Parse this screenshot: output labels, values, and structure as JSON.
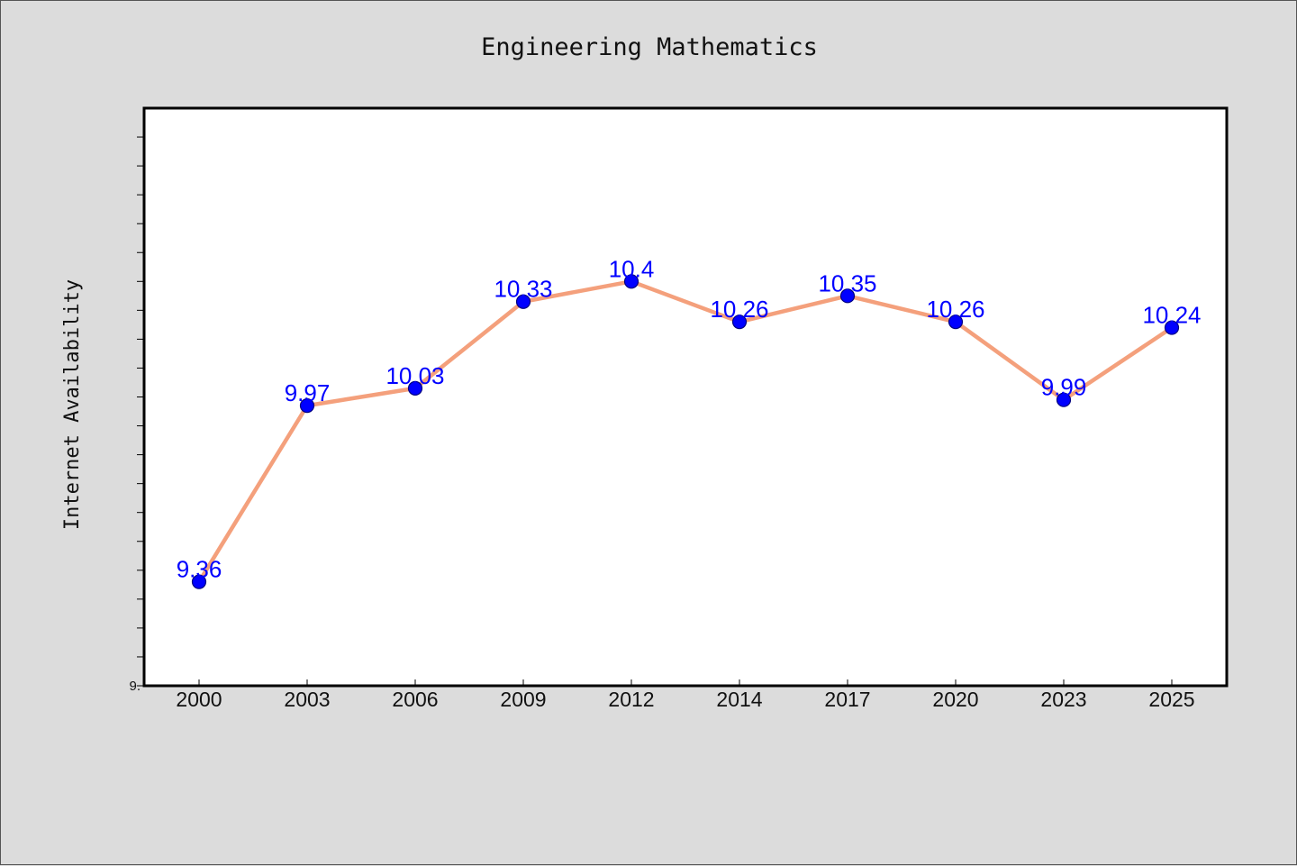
{
  "chart_data": {
    "type": "line",
    "title": "Engineering Mathematics",
    "xlabel": "",
    "ylabel": "Internet Availability",
    "categories": [
      "2000",
      "2003",
      "2006",
      "2009",
      "2012",
      "2014",
      "2017",
      "2020",
      "2023",
      "2025"
    ],
    "series": [
      {
        "values": [
          9.36,
          9.97,
          10.03,
          10.33,
          10.4,
          10.26,
          10.35,
          10.26,
          9.99,
          10.24
        ],
        "labels": [
          "9.36",
          "9.97",
          "10.03",
          "10.33",
          "10.4",
          "10.26",
          "10.35",
          "10.26",
          "9.99",
          "10.24"
        ]
      }
    ],
    "ylim": [
      9.0,
      11.0
    ],
    "y_tick_labels": [
      {
        "value": 9.0,
        "label": "9."
      }
    ],
    "y_minor_tick_step": 0.1,
    "grid": false,
    "legend": "none",
    "colors": {
      "line": "#f4a07c",
      "marker": "#0000ff",
      "marker_edge": "#000080",
      "data_label": "#0000ff",
      "plot_background": "#ffffff",
      "figure_background": "#dcdcdc"
    }
  }
}
